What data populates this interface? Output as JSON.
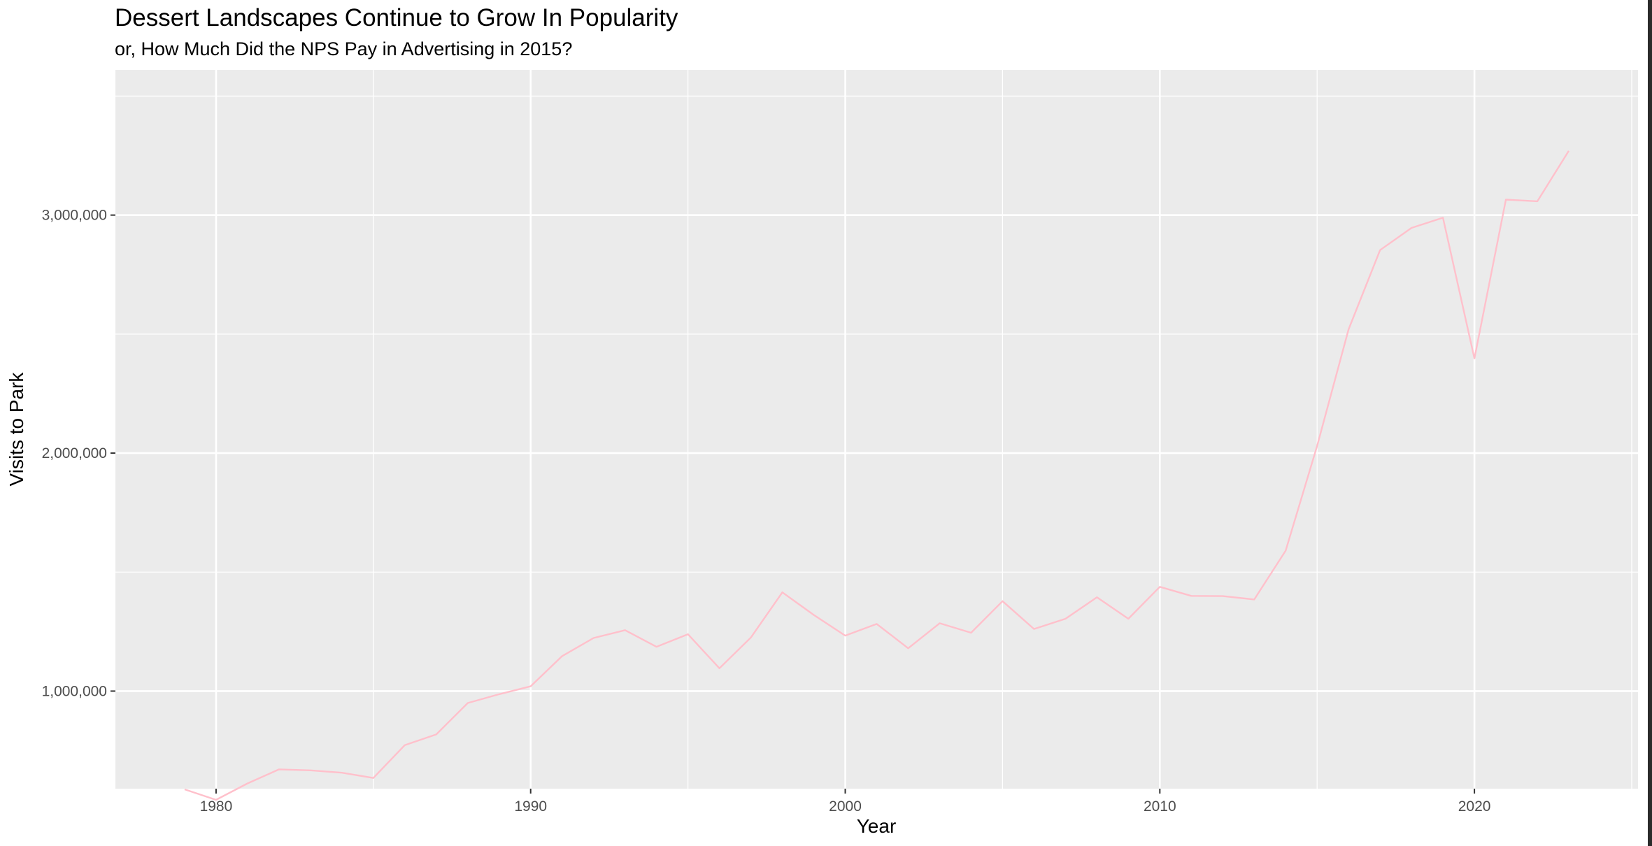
{
  "chart_data": {
    "type": "line",
    "title": "Dessert Landscapes Continue to Grow In Popularity",
    "subtitle": "or, How Much Did the NPS Pay in Advertising in 2015?",
    "xlabel": "Year",
    "ylabel": "Visits to Park",
    "xlim": [
      1976.8,
      2025.2
    ],
    "ylim": [
      590000,
      3610000
    ],
    "x_ticks": [
      1980,
      1990,
      2000,
      2010,
      2020
    ],
    "x_tick_labels": [
      "1980",
      "1990",
      "2000",
      "2010",
      "2020"
    ],
    "y_ticks": [
      1000000,
      2000000,
      3000000
    ],
    "y_tick_labels": [
      "1,000,000",
      "2,000,000",
      "3,000,000"
    ],
    "grid": true,
    "line_color": "#ffc0cb",
    "panel_color": "#ebebeb",
    "series": [
      {
        "x": [
          1979,
          1980,
          1981,
          1982,
          1983,
          1984,
          1985,
          1986,
          1987,
          1988,
          1989,
          1990,
          1991,
          1992,
          1993,
          1994,
          1995,
          1996,
          1997,
          1998,
          1999,
          2000,
          2001,
          2002,
          2003,
          2004,
          2005,
          2006,
          2007,
          2008,
          2009,
          2010,
          2011,
          2012,
          2013,
          2014,
          2015,
          2016,
          2017,
          2018,
          2019,
          2020,
          2021,
          2022,
          2023
        ],
        "values": [
          587000,
          543000,
          612000,
          671000,
          667000,
          657000,
          635000,
          773000,
          818000,
          950000,
          987000,
          1020000,
          1147000,
          1223000,
          1256000,
          1186000,
          1239000,
          1096000,
          1225000,
          1415000,
          1320000,
          1233000,
          1282000,
          1180000,
          1285000,
          1245000,
          1378000,
          1261000,
          1304000,
          1394000,
          1304000,
          1438000,
          1400000,
          1399000,
          1385000,
          1590000,
          2030000,
          2520000,
          2853000,
          2946000,
          2989000,
          2398000,
          3065000,
          3058000,
          3270000
        ]
      }
    ]
  }
}
